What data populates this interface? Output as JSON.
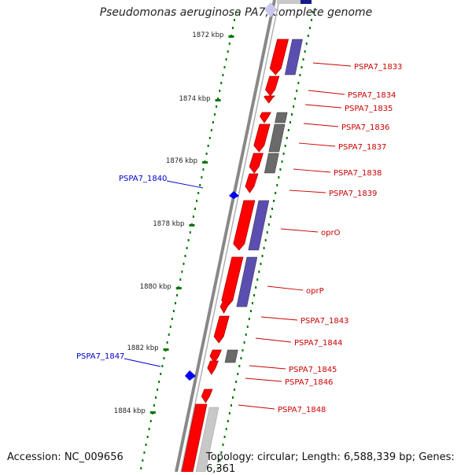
{
  "title": "Pseudomonas aeruginosa PA7, complete genome",
  "footer": {
    "accession": "Accession: NC_009656",
    "topology": "Topology: circular; Length: 6,588,339 bp; Genes: 6,361"
  },
  "colors": {
    "gene_red": "#ff0000",
    "gene_blue": "#0000ee",
    "cds_purple": "#5a4fb0",
    "cds_gray": "#6a6a6a",
    "cds_light": "#c8c8c8",
    "tick_green": "#007700",
    "axis_gray": "#888888",
    "label_red": "#cc0000",
    "label_blue": "#0000cc"
  },
  "kbp_labels": [
    "1872 kbp",
    "1874 kbp",
    "1876 kbp",
    "1878 kbp",
    "1880 kbp",
    "1882 kbp",
    "1884 kbp"
  ],
  "genes": [
    {
      "label": "PSPA7_1833",
      "strand": "minus"
    },
    {
      "label": "PSPA7_1834",
      "strand": "minus"
    },
    {
      "label": "PSPA7_1835",
      "strand": "minus"
    },
    {
      "label": "PSPA7_1836",
      "strand": "minus"
    },
    {
      "label": "PSPA7_1837",
      "strand": "minus"
    },
    {
      "label": "PSPA7_1838",
      "strand": "minus"
    },
    {
      "label": "PSPA7_1839",
      "strand": "minus"
    },
    {
      "label": "PSPA7_1840",
      "strand": "plus"
    },
    {
      "label": "oprO",
      "strand": "minus"
    },
    {
      "label": "oprP",
      "strand": "minus"
    },
    {
      "label": "PSPA7_1843",
      "strand": "minus"
    },
    {
      "label": "PSPA7_1844",
      "strand": "minus"
    },
    {
      "label": "PSPA7_1845",
      "strand": "minus"
    },
    {
      "label": "PSPA7_1846",
      "strand": "minus"
    },
    {
      "label": "PSPA7_1847",
      "strand": "plus"
    },
    {
      "label": "PSPA7_1848",
      "strand": "minus"
    }
  ]
}
